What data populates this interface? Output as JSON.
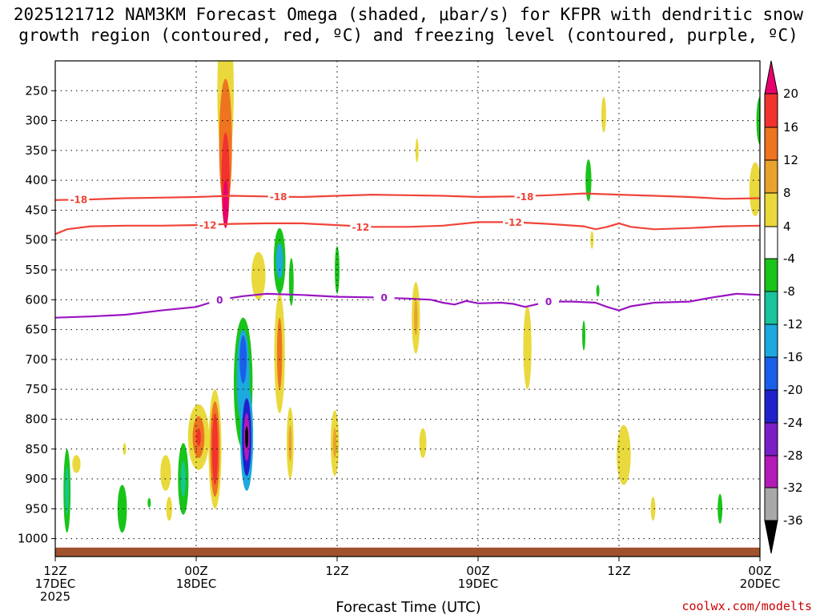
{
  "chart_data": {
    "type": "heatmap",
    "title_line1": "2025121712 NAM3KM Forecast Omega (shaded, μbar/s) for KFPR with dendritic snow",
    "title_line2": "growth region (contoured, red, ºC) and freezing level (contoured, purple, ºC)",
    "xlabel": "Forecast Time (UTC)",
    "ylabel": "",
    "x_ticks": [
      {
        "hour": 0,
        "lines": [
          "12Z",
          "17DEC",
          "2025"
        ]
      },
      {
        "hour": 12,
        "lines": [
          "00Z",
          "18DEC"
        ]
      },
      {
        "hour": 24,
        "lines": [
          "12Z"
        ]
      },
      {
        "hour": 36,
        "lines": [
          "00Z",
          "19DEC"
        ]
      },
      {
        "hour": 48,
        "lines": [
          "12Z"
        ]
      },
      {
        "hour": 60,
        "lines": [
          "00Z",
          "20DEC"
        ]
      }
    ],
    "y_ticks": [
      250,
      300,
      350,
      400,
      450,
      500,
      550,
      600,
      650,
      700,
      750,
      800,
      850,
      900,
      950,
      1000
    ],
    "ylim": [
      200,
      1030
    ],
    "xlim": [
      0,
      60
    ],
    "grid": true,
    "colorbar": {
      "labels": [
        "20",
        "16",
        "12",
        "8",
        "4",
        "-4",
        "-8",
        "-12",
        "-16",
        "-20",
        "-24",
        "-28",
        "-32",
        "-36"
      ],
      "colors": [
        "#e8006e",
        "#f2322e",
        "#ee7420",
        "#e9a22c",
        "#e9d93c",
        "#ffffff",
        "#19c419",
        "#17c49b",
        "#1ca9dd",
        "#1a5fe9",
        "#2121cc",
        "#7a1fc6",
        "#b31ab8",
        "#a8a8a8",
        "#000000"
      ]
    },
    "contours": [
      {
        "label": "-18",
        "color": "#f04438",
        "points": [
          [
            0,
            433
          ],
          [
            3,
            432
          ],
          [
            6,
            430
          ],
          [
            9,
            429
          ],
          [
            12,
            428
          ],
          [
            15,
            426
          ],
          [
            18,
            427
          ],
          [
            21,
            428
          ],
          [
            24,
            426
          ],
          [
            27,
            424
          ],
          [
            30,
            425
          ],
          [
            33,
            426
          ],
          [
            36,
            428
          ],
          [
            39,
            427
          ],
          [
            42,
            425
          ],
          [
            45,
            422
          ],
          [
            48,
            424
          ],
          [
            51,
            426
          ],
          [
            54,
            428
          ],
          [
            57,
            431
          ],
          [
            60,
            430
          ]
        ]
      },
      {
        "label": "-12",
        "color": "#f04438",
        "points": [
          [
            0,
            490
          ],
          [
            1,
            482
          ],
          [
            3,
            477
          ],
          [
            6,
            476
          ],
          [
            9,
            476
          ],
          [
            12,
            475
          ],
          [
            15,
            473
          ],
          [
            18,
            472
          ],
          [
            21,
            472
          ],
          [
            24,
            475
          ],
          [
            27,
            478
          ],
          [
            30,
            478
          ],
          [
            33,
            476
          ],
          [
            36,
            470
          ],
          [
            39,
            470
          ],
          [
            42,
            473
          ],
          [
            45,
            477
          ],
          [
            46,
            482
          ],
          [
            47,
            478
          ],
          [
            48,
            472
          ],
          [
            49,
            478
          ],
          [
            51,
            482
          ],
          [
            54,
            480
          ],
          [
            57,
            477
          ],
          [
            60,
            476
          ]
        ]
      },
      {
        "label": "0",
        "color": "#9a14c2",
        "points": [
          [
            0,
            630
          ],
          [
            3,
            628
          ],
          [
            6,
            625
          ],
          [
            9,
            618
          ],
          [
            12,
            612
          ],
          [
            14,
            600
          ],
          [
            16,
            594
          ],
          [
            18,
            590
          ],
          [
            21,
            592
          ],
          [
            24,
            595
          ],
          [
            27,
            596
          ],
          [
            30,
            598
          ],
          [
            32,
            600
          ],
          [
            33,
            605
          ],
          [
            34,
            608
          ],
          [
            35,
            602
          ],
          [
            36,
            606
          ],
          [
            38,
            605
          ],
          [
            39,
            607
          ],
          [
            40,
            612
          ],
          [
            42,
            603
          ],
          [
            44,
            603
          ],
          [
            46,
            605
          ],
          [
            47,
            612
          ],
          [
            48,
            618
          ],
          [
            49,
            611
          ],
          [
            51,
            605
          ],
          [
            54,
            603
          ],
          [
            56,
            596
          ],
          [
            57,
            593
          ],
          [
            58,
            590
          ],
          [
            60,
            592
          ]
        ]
      }
    ],
    "omega_cells": [
      {
        "x": 14.5,
        "p": 250,
        "dx": 0.7,
        "dp": 135,
        "value": 6
      },
      {
        "x": 14.5,
        "p": 340,
        "dx": 0.55,
        "dp": 110,
        "value": 12
      },
      {
        "x": 14.5,
        "p": 400,
        "dx": 0.35,
        "dp": 80,
        "value": 18
      },
      {
        "x": 14.5,
        "p": 440,
        "dx": 0.22,
        "dp": 40,
        "value": 22
      },
      {
        "x": 46.7,
        "p": 290,
        "dx": 0.2,
        "dp": 30,
        "value": 6
      },
      {
        "x": 60.0,
        "p": 300,
        "dx": 0.3,
        "dp": 40,
        "value": -6
      },
      {
        "x": 59.6,
        "p": 415,
        "dx": 0.5,
        "dp": 45,
        "value": 5
      },
      {
        "x": 45.4,
        "p": 400,
        "dx": 0.25,
        "dp": 35,
        "value": -6
      },
      {
        "x": 30.8,
        "p": 350,
        "dx": 0.1,
        "dp": 20,
        "value": 5
      },
      {
        "x": 24.0,
        "p": 550,
        "dx": 0.2,
        "dp": 40,
        "value": -6
      },
      {
        "x": 16.0,
        "p": 740,
        "dx": 0.8,
        "dp": 110,
        "value": -6
      },
      {
        "x": 16.0,
        "p": 730,
        "dx": 0.55,
        "dp": 80,
        "value": -12
      },
      {
        "x": 16.0,
        "p": 700,
        "dx": 0.3,
        "dp": 40,
        "value": -16
      },
      {
        "x": 16.3,
        "p": 830,
        "dx": 0.55,
        "dp": 90,
        "value": -12
      },
      {
        "x": 16.3,
        "p": 830,
        "dx": 0.4,
        "dp": 65,
        "value": -20
      },
      {
        "x": 16.3,
        "p": 830,
        "dx": 0.25,
        "dp": 40,
        "value": -28
      },
      {
        "x": 16.3,
        "p": 830,
        "dx": 0.12,
        "dp": 18,
        "value": -36
      },
      {
        "x": 17.3,
        "p": 560,
        "dx": 0.6,
        "dp": 40,
        "value": 5
      },
      {
        "x": 19.1,
        "p": 535,
        "dx": 0.5,
        "dp": 55,
        "value": -6
      },
      {
        "x": 19.1,
        "p": 535,
        "dx": 0.3,
        "dp": 30,
        "value": -14
      },
      {
        "x": 19.1,
        "p": 690,
        "dx": 0.45,
        "dp": 100,
        "value": 6
      },
      {
        "x": 19.1,
        "p": 690,
        "dx": 0.22,
        "dp": 60,
        "value": 12
      },
      {
        "x": 20.1,
        "p": 570,
        "dx": 0.2,
        "dp": 40,
        "value": -6
      },
      {
        "x": 30.7,
        "p": 630,
        "dx": 0.35,
        "dp": 60,
        "value": 6
      },
      {
        "x": 30.7,
        "p": 630,
        "dx": 0.15,
        "dp": 30,
        "value": 9
      },
      {
        "x": 13.6,
        "p": 850,
        "dx": 0.55,
        "dp": 100,
        "value": 6
      },
      {
        "x": 13.6,
        "p": 850,
        "dx": 0.4,
        "dp": 80,
        "value": 12
      },
      {
        "x": 13.6,
        "p": 850,
        "dx": 0.25,
        "dp": 60,
        "value": 18
      },
      {
        "x": 12.2,
        "p": 830,
        "dx": 0.9,
        "dp": 55,
        "value": 6
      },
      {
        "x": 12.2,
        "p": 830,
        "dx": 0.5,
        "dp": 35,
        "value": 12
      },
      {
        "x": 12.2,
        "p": 830,
        "dx": 0.2,
        "dp": 15,
        "value": 18
      },
      {
        "x": 10.9,
        "p": 900,
        "dx": 0.45,
        "dp": 60,
        "value": -6
      },
      {
        "x": 10.9,
        "p": 900,
        "dx": 0.2,
        "dp": 30,
        "value": -10
      },
      {
        "x": 9.4,
        "p": 890,
        "dx": 0.45,
        "dp": 30,
        "value": 5
      },
      {
        "x": 9.7,
        "p": 950,
        "dx": 0.25,
        "dp": 20,
        "value": 5
      },
      {
        "x": 1.0,
        "p": 920,
        "dx": 0.3,
        "dp": 70,
        "value": -6
      },
      {
        "x": 1.0,
        "p": 920,
        "dx": 0.15,
        "dp": 40,
        "value": -10
      },
      {
        "x": 1.8,
        "p": 875,
        "dx": 0.35,
        "dp": 15,
        "value": 5
      },
      {
        "x": 5.7,
        "p": 950,
        "dx": 0.4,
        "dp": 40,
        "value": -6
      },
      {
        "x": 20.0,
        "p": 840,
        "dx": 0.3,
        "dp": 60,
        "value": 5
      },
      {
        "x": 20.0,
        "p": 840,
        "dx": 0.12,
        "dp": 30,
        "value": 9
      },
      {
        "x": 23.8,
        "p": 840,
        "dx": 0.35,
        "dp": 55,
        "value": 6
      },
      {
        "x": 23.8,
        "p": 840,
        "dx": 0.15,
        "dp": 25,
        "value": 10
      },
      {
        "x": 31.3,
        "p": 840,
        "dx": 0.3,
        "dp": 25,
        "value": 5
      },
      {
        "x": 40.2,
        "p": 680,
        "dx": 0.35,
        "dp": 70,
        "value": 5
      },
      {
        "x": 48.4,
        "p": 860,
        "dx": 0.6,
        "dp": 50,
        "value": 5
      },
      {
        "x": 50.9,
        "p": 950,
        "dx": 0.2,
        "dp": 20,
        "value": 5
      },
      {
        "x": 56.6,
        "p": 950,
        "dx": 0.2,
        "dp": 25,
        "value": -6
      },
      {
        "x": 45.0,
        "p": 660,
        "dx": 0.12,
        "dp": 25,
        "value": -6
      },
      {
        "x": 46.2,
        "p": 585,
        "dx": 0.1,
        "dp": 10,
        "value": -6
      },
      {
        "x": 45.7,
        "p": 500,
        "dx": 0.1,
        "dp": 15,
        "value": 5
      },
      {
        "x": 5.9,
        "p": 850,
        "dx": 0.08,
        "dp": 10,
        "value": 5
      },
      {
        "x": 8.0,
        "p": 940,
        "dx": 0.08,
        "dp": 8,
        "value": -6
      }
    ],
    "ground_level": 1015,
    "ground_color": "#a0522d"
  },
  "credit": "coolwx.com/modelts"
}
